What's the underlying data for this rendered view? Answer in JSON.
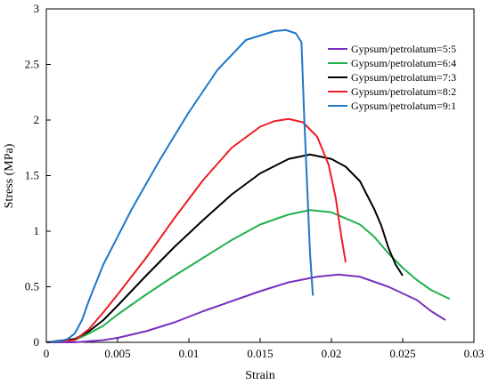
{
  "chart_data": {
    "type": "line",
    "title": "",
    "xlabel": "Strain",
    "ylabel": "Stress (MPa)",
    "xlim": [
      0,
      0.03
    ],
    "ylim": [
      0,
      3
    ],
    "xticks": [
      "0",
      "0.005",
      "0.01",
      "0.015",
      "0.02",
      "0.025",
      "0.03"
    ],
    "yticks": [
      "0",
      "0.5",
      "1",
      "1.5",
      "2",
      "2.5",
      "3"
    ],
    "grid": false,
    "legend_position": "top-right",
    "series": [
      {
        "name": "Gypsum/petrolatum=5:5",
        "color": "#7a2fbf",
        "x": [
          0,
          0.002,
          0.003,
          0.004,
          0.005,
          0.007,
          0.009,
          0.011,
          0.013,
          0.015,
          0.017,
          0.019,
          0.0205,
          0.022,
          0.024,
          0.026,
          0.027,
          0.028
        ],
        "y": [
          0,
          0.0,
          0.01,
          0.02,
          0.04,
          0.1,
          0.18,
          0.28,
          0.37,
          0.46,
          0.54,
          0.59,
          0.61,
          0.59,
          0.5,
          0.38,
          0.28,
          0.2
        ]
      },
      {
        "name": "Gypsum/petrolatum=6:4",
        "color": "#22b14c",
        "x": [
          0,
          0.002,
          0.003,
          0.004,
          0.005,
          0.007,
          0.009,
          0.011,
          0.013,
          0.015,
          0.017,
          0.0185,
          0.02,
          0.022,
          0.023,
          0.024,
          0.025,
          0.026,
          0.027,
          0.0283
        ],
        "y": [
          0,
          0.02,
          0.08,
          0.15,
          0.25,
          0.43,
          0.6,
          0.76,
          0.92,
          1.06,
          1.15,
          1.19,
          1.17,
          1.06,
          0.95,
          0.8,
          0.67,
          0.56,
          0.47,
          0.39
        ]
      },
      {
        "name": "Gypsum/petrolatum=7:3",
        "color": "#000000",
        "x": [
          0,
          0.002,
          0.003,
          0.004,
          0.005,
          0.007,
          0.009,
          0.011,
          0.013,
          0.015,
          0.017,
          0.0185,
          0.02,
          0.021,
          0.022,
          0.023,
          0.0235,
          0.024,
          0.0245,
          0.025
        ],
        "y": [
          0,
          0.03,
          0.1,
          0.2,
          0.33,
          0.6,
          0.86,
          1.1,
          1.33,
          1.52,
          1.65,
          1.69,
          1.65,
          1.58,
          1.45,
          1.2,
          1.05,
          0.85,
          0.7,
          0.6
        ]
      },
      {
        "name": "Gypsum/petrolatum=8:2",
        "color": "#ee1c24",
        "x": [
          0,
          0.002,
          0.003,
          0.004,
          0.005,
          0.007,
          0.009,
          0.011,
          0.013,
          0.015,
          0.016,
          0.017,
          0.018,
          0.019,
          0.0198,
          0.0203,
          0.0207,
          0.021
        ],
        "y": [
          0,
          0.02,
          0.12,
          0.27,
          0.43,
          0.76,
          1.12,
          1.46,
          1.75,
          1.94,
          1.99,
          2.01,
          1.98,
          1.85,
          1.6,
          1.3,
          0.95,
          0.72
        ]
      },
      {
        "name": "Gypsum/petrolatum=9:1",
        "color": "#1f77c9",
        "x": [
          0,
          0.001,
          0.0015,
          0.002,
          0.0025,
          0.003,
          0.004,
          0.006,
          0.008,
          0.01,
          0.012,
          0.014,
          0.016,
          0.0168,
          0.0175,
          0.0179,
          0.0181,
          0.0183,
          0.0185,
          0.0187
        ],
        "y": [
          0,
          0.01,
          0.03,
          0.08,
          0.2,
          0.38,
          0.7,
          1.2,
          1.65,
          2.07,
          2.45,
          2.72,
          2.8,
          2.81,
          2.78,
          2.7,
          2.0,
          1.4,
          0.8,
          0.42
        ]
      }
    ]
  }
}
